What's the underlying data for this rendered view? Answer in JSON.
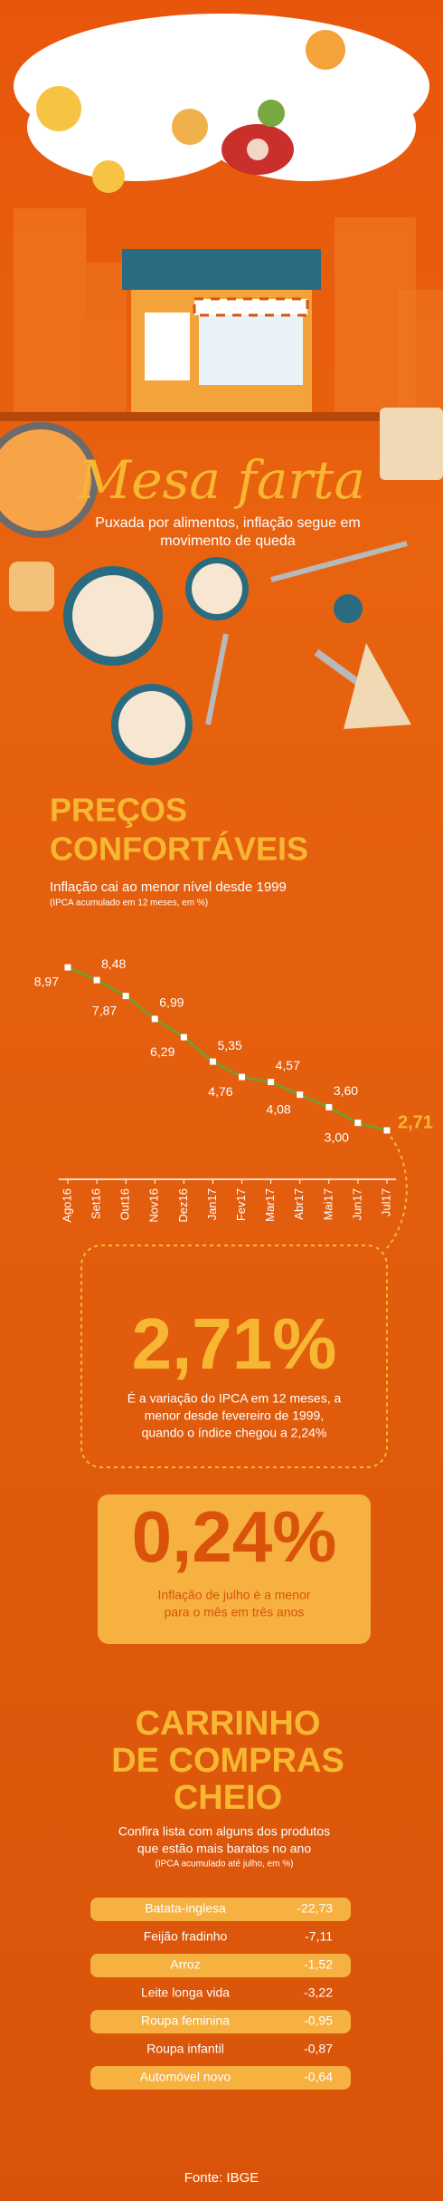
{
  "header": {
    "title": "Mesa farta",
    "subtitle_lines": [
      "Puxada por alimentos, inflação segue em",
      "movimento de queda"
    ]
  },
  "chart_data": {
    "type": "line",
    "title_lines": [
      "PREÇOS",
      "CONFORTÁVEIS"
    ],
    "subtitle": "Inflação cai ao menor nível desde 1999",
    "note": "(IPCA acumulado em 12 meses, em %)",
    "categories": [
      "Ago16",
      "Set16",
      "Out16",
      "Nov16",
      "Dez16",
      "Jan17",
      "Fev17",
      "Mar17",
      "Abr17",
      "Mai17",
      "Jun17",
      "Jul17"
    ],
    "values": [
      8.97,
      8.48,
      7.87,
      6.99,
      6.29,
      5.35,
      4.76,
      4.57,
      4.08,
      3.6,
      3.0,
      2.71
    ],
    "value_labels": [
      "8,97",
      "8,48",
      "7,87",
      "6,99",
      "6,29",
      "5,35",
      "4,76",
      "4,57",
      "4,08",
      "3,60",
      "3,00",
      "2,71"
    ],
    "color": "#7a9b2b"
  },
  "highlight_1": {
    "value": "2,71%",
    "text_lines": [
      "É a variação do IPCA em 12 meses, a",
      "menor desde fevereiro de 1999,",
      "quando o índice chegou a 2,24%"
    ]
  },
  "highlight_2": {
    "value": "0,24%",
    "text_lines": [
      "Inflação de julho é a menor",
      "para o mês em três anos"
    ]
  },
  "products": {
    "title_lines": [
      "CARRINHO",
      "DE COMPRAS",
      "CHEIO"
    ],
    "subtitle_lines": [
      "Confira lista com alguns dos produtos",
      "que estão mais baratos no ano"
    ],
    "note": "(IPCA acumulado até julho, em %)",
    "rows": [
      [
        "Batata-inglesa",
        "-22,73"
      ],
      [
        "Feijão fradinho",
        "-7,11"
      ],
      [
        "Arroz",
        "-1,52"
      ],
      [
        "Leite longa vida",
        "-3,22"
      ],
      [
        "Roupa feminina",
        "-0,95"
      ],
      [
        "Roupa infantil",
        "-0,87"
      ],
      [
        "Automóvel novo",
        "-0,64"
      ]
    ]
  },
  "source": "Fonte: IBGE"
}
